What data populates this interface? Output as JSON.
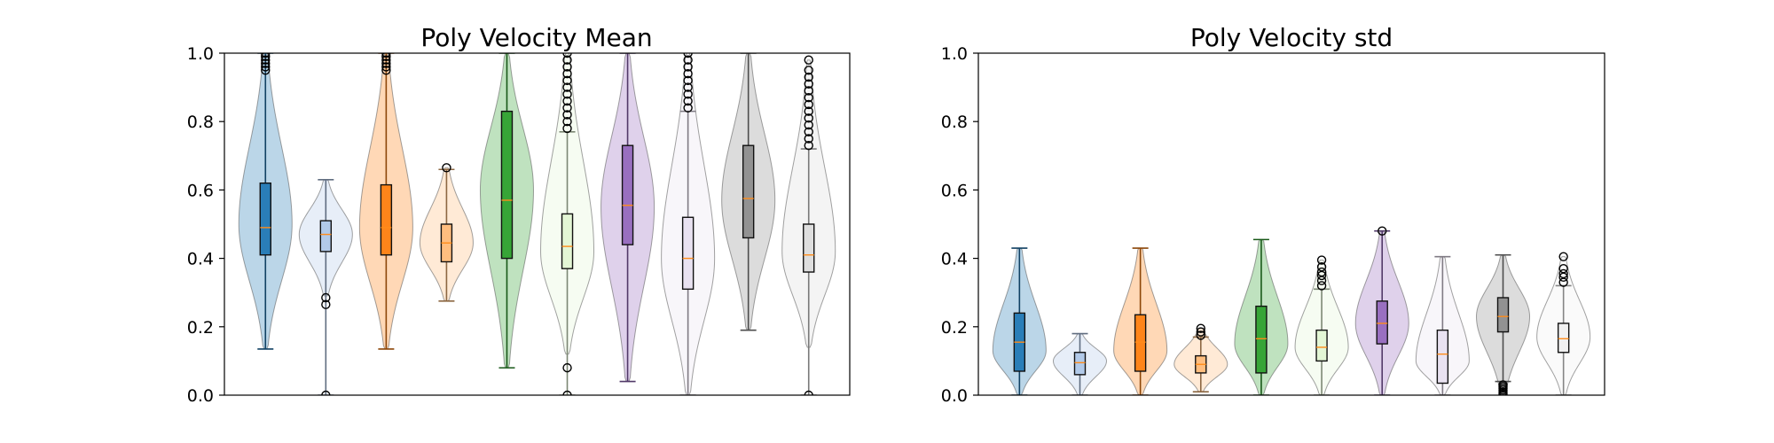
{
  "chart_data": [
    {
      "type": "violin",
      "title": "Poly Velocity Mean",
      "xlabel": "",
      "ylabel": "",
      "ylim": [
        0,
        1
      ],
      "yticks": [
        "0.0",
        "0.2",
        "0.4",
        "0.6",
        "0.8",
        "1.0"
      ],
      "grid": false,
      "series": [
        {
          "color": "#1f77b4",
          "min": 0.135,
          "q1": 0.41,
          "median": 0.49,
          "q3": 0.62,
          "max": 1.0,
          "violin_min": 0.135,
          "violin_max": 1.0,
          "peak": 0.5,
          "outliers": [
            0.95,
            0.96,
            0.97,
            0.98,
            0.99,
            1.0
          ]
        },
        {
          "color": "#aec7e8",
          "min": 0.0,
          "q1": 0.42,
          "median": 0.47,
          "q3": 0.51,
          "max": 0.63,
          "violin_min": 0.29,
          "violin_max": 0.63,
          "peak": 0.47,
          "outliers": [
            0.0,
            0.265,
            0.285
          ]
        },
        {
          "color": "#ff7f0e",
          "min": 0.135,
          "q1": 0.41,
          "median": 0.49,
          "q3": 0.615,
          "max": 1.0,
          "violin_min": 0.135,
          "violin_max": 1.0,
          "peak": 0.49,
          "outliers": [
            0.95,
            0.96,
            0.97,
            0.98,
            0.99,
            1.0
          ]
        },
        {
          "color": "#ffbb78",
          "min": 0.275,
          "q1": 0.39,
          "median": 0.445,
          "q3": 0.5,
          "max": 0.66,
          "violin_min": 0.275,
          "violin_max": 0.665,
          "peak": 0.445,
          "outliers": [
            0.665
          ]
        },
        {
          "color": "#2ca02c",
          "min": 0.08,
          "q1": 0.4,
          "median": 0.57,
          "q3": 0.83,
          "max": 1.0,
          "violin_min": 0.08,
          "violin_max": 1.0,
          "peak": 0.6,
          "outliers": []
        },
        {
          "color": "#e2f5d3",
          "min": 0.0,
          "q1": 0.37,
          "median": 0.435,
          "q3": 0.53,
          "max": 0.77,
          "violin_min": 0.12,
          "violin_max": 1.0,
          "peak": 0.42,
          "outliers": [
            0.0,
            0.08,
            0.78,
            0.8,
            0.82,
            0.84,
            0.86,
            0.88,
            0.9,
            0.92,
            0.94,
            0.96,
            0.98,
            1.0
          ]
        },
        {
          "color": "#9467bd",
          "min": 0.04,
          "q1": 0.44,
          "median": 0.555,
          "q3": 0.73,
          "max": 1.0,
          "violin_min": 0.04,
          "violin_max": 1.0,
          "peak": 0.55,
          "outliers": []
        },
        {
          "color": "#e8e0f0",
          "min": 0.0,
          "q1": 0.31,
          "median": 0.4,
          "q3": 0.52,
          "max": 0.83,
          "violin_min": 0.0,
          "violin_max": 1.0,
          "peak": 0.4,
          "outliers": [
            0.84,
            0.86,
            0.88,
            0.9,
            0.92,
            0.94,
            0.96,
            0.98,
            1.0
          ]
        },
        {
          "color": "#8c8c8c",
          "min": 0.19,
          "q1": 0.46,
          "median": 0.575,
          "q3": 0.73,
          "max": 1.0,
          "violin_min": 0.19,
          "violin_max": 1.0,
          "peak": 0.57,
          "outliers": []
        },
        {
          "color": "#dcdcdc",
          "min": 0.0,
          "q1": 0.36,
          "median": 0.41,
          "q3": 0.5,
          "max": 0.72,
          "violin_min": 0.14,
          "violin_max": 0.98,
          "peak": 0.42,
          "outliers": [
            0.0,
            0.73,
            0.75,
            0.77,
            0.79,
            0.81,
            0.83,
            0.85,
            0.87,
            0.89,
            0.91,
            0.93,
            0.95,
            0.98
          ]
        }
      ]
    },
    {
      "type": "violin",
      "title": "Poly Velocity std",
      "xlabel": "",
      "ylabel": "",
      "ylim": [
        0,
        1
      ],
      "yticks": [
        "0.0",
        "0.2",
        "0.4",
        "0.6",
        "0.8",
        "1.0"
      ],
      "grid": false,
      "series": [
        {
          "color": "#1f77b4",
          "min": 0.0,
          "q1": 0.07,
          "median": 0.155,
          "q3": 0.24,
          "max": 0.43,
          "violin_min": 0.0,
          "violin_max": 0.43,
          "peak": 0.13,
          "outliers": []
        },
        {
          "color": "#aec7e8",
          "min": 0.0,
          "q1": 0.06,
          "median": 0.095,
          "q3": 0.125,
          "max": 0.18,
          "violin_min": 0.0,
          "violin_max": 0.18,
          "peak": 0.1,
          "outliers": []
        },
        {
          "color": "#ff7f0e",
          "min": 0.0,
          "q1": 0.07,
          "median": 0.155,
          "q3": 0.235,
          "max": 0.43,
          "violin_min": 0.0,
          "violin_max": 0.43,
          "peak": 0.13,
          "outliers": []
        },
        {
          "color": "#ffbb78",
          "min": 0.01,
          "q1": 0.065,
          "median": 0.09,
          "q3": 0.115,
          "max": 0.17,
          "violin_min": 0.01,
          "violin_max": 0.195,
          "peak": 0.09,
          "outliers": [
            0.175,
            0.185,
            0.195
          ]
        },
        {
          "color": "#2ca02c",
          "min": 0.0,
          "q1": 0.065,
          "median": 0.165,
          "q3": 0.26,
          "max": 0.455,
          "violin_min": 0.0,
          "violin_max": 0.455,
          "peak": 0.15,
          "outliers": []
        },
        {
          "color": "#e2f5d3",
          "min": 0.0,
          "q1": 0.1,
          "median": 0.14,
          "q3": 0.19,
          "max": 0.31,
          "violin_min": 0.0,
          "violin_max": 0.395,
          "peak": 0.14,
          "outliers": [
            0.32,
            0.335,
            0.35,
            0.36,
            0.375,
            0.395
          ]
        },
        {
          "color": "#9467bd",
          "min": 0.0,
          "q1": 0.15,
          "median": 0.21,
          "q3": 0.275,
          "max": 0.48,
          "violin_min": 0.0,
          "violin_max": 0.48,
          "peak": 0.21,
          "outliers": [
            0.48
          ]
        },
        {
          "color": "#e8e0f0",
          "min": 0.0,
          "q1": 0.035,
          "median": 0.12,
          "q3": 0.19,
          "max": 0.405,
          "violin_min": 0.0,
          "violin_max": 0.405,
          "peak": 0.1,
          "outliers": []
        },
        {
          "color": "#8c8c8c",
          "min": 0.04,
          "q1": 0.185,
          "median": 0.23,
          "q3": 0.285,
          "max": 0.41,
          "violin_min": 0.0,
          "violin_max": 0.41,
          "peak": 0.23,
          "outliers": [
            0.0,
            0.005,
            0.01,
            0.015,
            0.02,
            0.025,
            0.03
          ]
        },
        {
          "color": "#f0f0f0",
          "min": 0.0,
          "q1": 0.125,
          "median": 0.165,
          "q3": 0.21,
          "max": 0.32,
          "violin_min": 0.0,
          "violin_max": 0.405,
          "peak": 0.17,
          "outliers": [
            0.33,
            0.345,
            0.355,
            0.37,
            0.405
          ]
        }
      ]
    }
  ]
}
